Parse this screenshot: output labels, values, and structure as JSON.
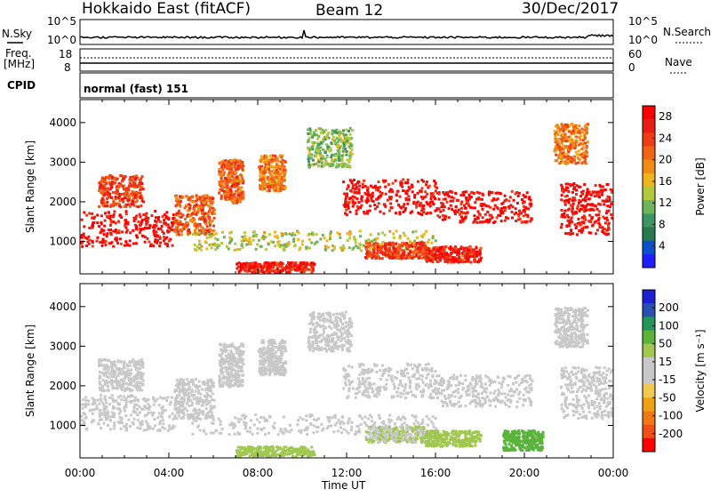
{
  "header": {
    "title": "Hokkaido East (fitACF)",
    "beam": "Beam 12",
    "date": "30/Dec/2017"
  },
  "params": {
    "nsky_label": "N.Sky",
    "nsearch_label": "N.Search",
    "nsky_ticks": [
      "10^5",
      "10^0"
    ],
    "freq_label": "Freq.",
    "freq_unit": "[MHz]",
    "freq_ticks": [
      "18",
      "8"
    ],
    "nave_label": "Nave",
    "nave_ticks": [
      "60",
      "0"
    ],
    "cpid_label": "CPID",
    "cpid_text": "normal (fast) 151"
  },
  "colors": {
    "power_scale": [
      "#1e1eff",
      "#0a50c8",
      "#287850",
      "#3c9664",
      "#6eb45a",
      "#b4c83c",
      "#f0b41e",
      "#f08c14",
      "#f06414",
      "#f03c14",
      "#e61e14",
      "#ff0000"
    ],
    "velocity_scale": [
      "#1e1ed2",
      "#2850b4",
      "#23965a",
      "#5ab43c",
      "#a0c850",
      "#c8c8c8",
      "#c8c8c8",
      "#f0c850",
      "#f0a014",
      "#f07814",
      "#f05014",
      "#ff0000"
    ],
    "ground_scatter": "#c8c8c8"
  },
  "chart_data": [
    {
      "type": "heatmap",
      "panel": "power",
      "ylabel": "Slant Range [km]",
      "xlabel": "Time UT",
      "x_ticks": [
        "00:00",
        "04:00",
        "08:00",
        "12:00",
        "16:00",
        "20:00",
        "00:00"
      ],
      "y_ticks": [
        1000,
        2000,
        3000,
        4000
      ],
      "ylim": [
        180,
        4580
      ],
      "colorbar": {
        "label": "Power [dB]",
        "ticks": [
          4,
          8,
          12,
          16,
          20,
          24,
          28
        ],
        "range": [
          0,
          30
        ]
      },
      "scatter_regions": [
        {
          "t": [
            0.0,
            4.2
          ],
          "r": [
            900,
            1800
          ],
          "value": 28
        },
        {
          "t": [
            0.8,
            2.8
          ],
          "r": [
            1900,
            2700
          ],
          "value": 24
        },
        {
          "t": [
            4.2,
            6.0
          ],
          "r": [
            1200,
            2200
          ],
          "value": 22
        },
        {
          "t": [
            6.2,
            7.3
          ],
          "r": [
            2000,
            3100
          ],
          "value": 22
        },
        {
          "t": [
            8.0,
            9.2
          ],
          "r": [
            2300,
            3200
          ],
          "value": 20
        },
        {
          "t": [
            10.2,
            12.2
          ],
          "r": [
            2900,
            3900
          ],
          "value": 12
        },
        {
          "t": [
            11.8,
            16.0
          ],
          "r": [
            1700,
            2600
          ],
          "value": 28
        },
        {
          "t": [
            16.0,
            20.3
          ],
          "r": [
            1500,
            2300
          ],
          "value": 28
        },
        {
          "t": [
            5.0,
            16.0
          ],
          "r": [
            800,
            1300
          ],
          "value": 14
        },
        {
          "t": [
            7.0,
            10.5
          ],
          "r": [
            250,
            500
          ],
          "value": 26
        },
        {
          "t": [
            12.8,
            15.5
          ],
          "r": [
            600,
            1000
          ],
          "value": 24
        },
        {
          "t": [
            15.5,
            18.0
          ],
          "r": [
            500,
            900
          ],
          "value": 26
        },
        {
          "t": [
            21.6,
            23.9
          ],
          "r": [
            1200,
            2500
          ],
          "value": 28
        },
        {
          "t": [
            21.3,
            22.8
          ],
          "r": [
            3000,
            4000
          ],
          "value": 20
        }
      ]
    },
    {
      "type": "heatmap",
      "panel": "velocity",
      "ylabel": "Slant Range [km]",
      "xlabel": "Time UT",
      "x_ticks": [
        "00:00",
        "04:00",
        "08:00",
        "12:00",
        "16:00",
        "20:00",
        "00:00"
      ],
      "y_ticks": [
        1000,
        2000,
        3000,
        4000
      ],
      "ylim": [
        180,
        4580
      ],
      "colorbar": {
        "label": "Velocity [m s⁻¹]",
        "ticks": [
          200,
          100,
          50,
          15,
          -15,
          -50,
          -100,
          -200
        ],
        "range": [
          -250,
          250
        ]
      },
      "scatter_regions": [
        {
          "t": [
            0.0,
            4.2
          ],
          "r": [
            900,
            1800
          ],
          "value": 0
        },
        {
          "t": [
            0.8,
            2.8
          ],
          "r": [
            1900,
            2700
          ],
          "value": 0
        },
        {
          "t": [
            4.2,
            6.0
          ],
          "r": [
            1200,
            2200
          ],
          "value": 0
        },
        {
          "t": [
            6.2,
            7.3
          ],
          "r": [
            2000,
            3100
          ],
          "value": 0
        },
        {
          "t": [
            8.0,
            9.2
          ],
          "r": [
            2300,
            3200
          ],
          "value": 0
        },
        {
          "t": [
            10.2,
            12.2
          ],
          "r": [
            2900,
            3900
          ],
          "value": 0
        },
        {
          "t": [
            11.8,
            16.0
          ],
          "r": [
            1700,
            2600
          ],
          "value": 0
        },
        {
          "t": [
            16.0,
            20.3
          ],
          "r": [
            1500,
            2300
          ],
          "value": 0
        },
        {
          "t": [
            5.0,
            16.0
          ],
          "r": [
            800,
            1300
          ],
          "value": -30
        },
        {
          "t": [
            7.0,
            10.5
          ],
          "r": [
            250,
            500
          ],
          "value": 60
        },
        {
          "t": [
            12.8,
            15.5
          ],
          "r": [
            600,
            1000
          ],
          "value": 40
        },
        {
          "t": [
            15.5,
            18.0
          ],
          "r": [
            500,
            900
          ],
          "value": 60
        },
        {
          "t": [
            19.0,
            20.8
          ],
          "r": [
            400,
            900
          ],
          "value": 110
        },
        {
          "t": [
            21.6,
            23.9
          ],
          "r": [
            1200,
            2500
          ],
          "value": 0
        },
        {
          "t": [
            21.3,
            22.8
          ],
          "r": [
            3000,
            4000
          ],
          "value": 0
        }
      ]
    }
  ]
}
